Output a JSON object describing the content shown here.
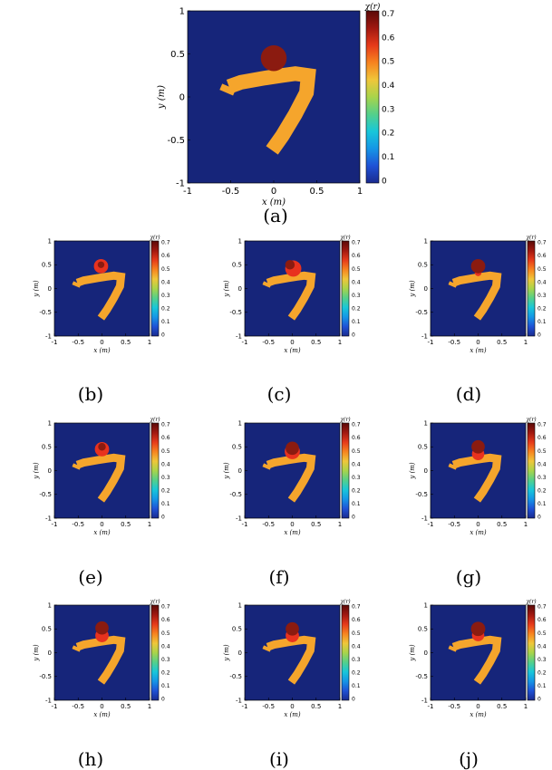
{
  "colors": {
    "background": "#16257a",
    "shape": "#f5a52c",
    "inclusion_outer": "#e8321e",
    "inclusion_inner": "#8b1b10",
    "colormap": [
      "#1a2a8f",
      "#1f52d6",
      "#1596e6",
      "#18c7d9",
      "#55d08a",
      "#a9d44a",
      "#f0c63a",
      "#f7831f",
      "#e63a1a",
      "#a01810",
      "#5a0a08"
    ]
  },
  "chart_data": [
    {
      "id": "a",
      "type": "heatmap",
      "caption": "(a)",
      "xlabel": "x (m)",
      "ylabel": "y (m)",
      "xlim": [
        -1,
        1
      ],
      "ylim": [
        -1,
        1
      ],
      "xticks": [
        "-1",
        "-0.5",
        "0",
        "0.5",
        "1"
      ],
      "yticks": [
        "1",
        "0.5",
        "0",
        "-0.5",
        "-1"
      ],
      "colorbar": {
        "label": "χ(r)",
        "ticks": [
          "0.7",
          "0.6",
          "0.5",
          "0.4",
          "0.3",
          "0.2",
          "0.1",
          "0"
        ],
        "range": [
          0,
          0.7
        ]
      },
      "shape_value": 0.42,
      "inclusion": {
        "center": [
          0,
          0.45
        ],
        "radius": 0.15,
        "value": 0.7
      },
      "inclusion_ring": null
    },
    {
      "id": "b",
      "type": "heatmap",
      "caption": "(b)",
      "xlabel": "x (m)",
      "ylabel": "y (m)",
      "xlim": [
        -1,
        1
      ],
      "ylim": [
        -1,
        1
      ],
      "xticks": [
        "-1",
        "-0.5",
        "0",
        "0.5",
        "1"
      ],
      "yticks": [
        "1",
        "0.5",
        "0",
        "-0.5",
        "-1"
      ],
      "colorbar": {
        "label": "χ(r)",
        "ticks": [
          "0.7",
          "0.6",
          "0.5",
          "0.4",
          "0.3",
          "0.2",
          "0.1",
          "0"
        ],
        "range": [
          0,
          0.7
        ]
      },
      "shape_value": 0.42,
      "inclusion": {
        "center": [
          -0.02,
          0.5
        ],
        "radius": 0.07,
        "value": 0.7
      },
      "inclusion_ring": {
        "center": [
          -0.02,
          0.47
        ],
        "radius": 0.15,
        "value": 0.63
      }
    },
    {
      "id": "c",
      "type": "heatmap",
      "caption": "(c)",
      "xlabel": "x (m)",
      "ylabel": "y (m)",
      "xlim": [
        -1,
        1
      ],
      "ylim": [
        -1,
        1
      ],
      "xticks": [
        "-1",
        "-0.5",
        "0",
        "0.5",
        "1"
      ],
      "yticks": [
        "1",
        "0.5",
        "0",
        "-0.5",
        "-1"
      ],
      "colorbar": {
        "label": "χ(r)",
        "ticks": [
          "0.7",
          "0.6",
          "0.5",
          "0.4",
          "0.3",
          "0.2",
          "0.1",
          "0"
        ],
        "range": [
          0,
          0.7
        ]
      },
      "shape_value": 0.42,
      "inclusion": {
        "center": [
          -0.05,
          0.5
        ],
        "radius": 0.1,
        "value": 0.7
      },
      "inclusion_ring": {
        "center": [
          0.02,
          0.42
        ],
        "radius": 0.17,
        "value": 0.63
      }
    },
    {
      "id": "d",
      "type": "heatmap",
      "caption": "(d)",
      "xlabel": "x (m)",
      "ylabel": "y (m)",
      "xlim": [
        -1,
        1
      ],
      "ylim": [
        -1,
        1
      ],
      "xticks": [
        "-1",
        "-0.5",
        "0",
        "0.5",
        "1"
      ],
      "yticks": [
        "1",
        "0.5",
        "0",
        "-0.5",
        "-1"
      ],
      "colorbar": {
        "label": "χ(r)",
        "ticks": [
          "0.7",
          "0.6",
          "0.5",
          "0.4",
          "0.3",
          "0.2",
          "0.1",
          "0"
        ],
        "range": [
          0,
          0.7
        ]
      },
      "shape_value": 0.42,
      "inclusion": {
        "center": [
          0,
          0.47
        ],
        "radius": 0.15,
        "value": 0.7
      },
      "inclusion_ring": {
        "center": [
          0,
          0.33
        ],
        "radius": 0.07,
        "value": 0.63
      }
    },
    {
      "id": "e",
      "type": "heatmap",
      "caption": "(e)",
      "xlabel": "x (m)",
      "ylabel": "y (m)",
      "xlim": [
        -1,
        1
      ],
      "ylim": [
        -1,
        1
      ],
      "xticks": [
        "-1",
        "-0.5",
        "0",
        "0.5",
        "1"
      ],
      "yticks": [
        "1",
        "0.5",
        "0",
        "-0.5",
        "-1"
      ],
      "colorbar": {
        "label": "χ(r)",
        "ticks": [
          "0.7",
          "0.6",
          "0.5",
          "0.4",
          "0.3",
          "0.2",
          "0.1",
          "0"
        ],
        "range": [
          0,
          0.7
        ]
      },
      "shape_value": 0.42,
      "inclusion": {
        "center": [
          0,
          0.5
        ],
        "radius": 0.08,
        "value": 0.7
      },
      "inclusion_ring": {
        "center": [
          0,
          0.45
        ],
        "radius": 0.15,
        "value": 0.63
      }
    },
    {
      "id": "f",
      "type": "heatmap",
      "caption": "(f)",
      "xlabel": "x (m)",
      "ylabel": "y (m)",
      "xlim": [
        -1,
        1
      ],
      "ylim": [
        -1,
        1
      ],
      "xticks": [
        "-1",
        "-0.5",
        "0",
        "0.5",
        "1"
      ],
      "yticks": [
        "1",
        "0.5",
        "0",
        "-0.5",
        "-1"
      ],
      "colorbar": {
        "label": "χ(r)",
        "ticks": [
          "0.7",
          "0.6",
          "0.5",
          "0.4",
          "0.3",
          "0.2",
          "0.1",
          "0"
        ],
        "range": [
          0,
          0.7
        ]
      },
      "shape_value": 0.42,
      "inclusion": {
        "center": [
          0,
          0.47
        ],
        "radius": 0.14,
        "value": 0.7
      },
      "inclusion_ring": {
        "center": [
          0,
          0.4
        ],
        "radius": 0.16,
        "value": 0.55
      }
    },
    {
      "id": "g",
      "type": "heatmap",
      "caption": "(g)",
      "xlabel": "x (m)",
      "ylabel": "y (m)",
      "xlim": [
        -1,
        1
      ],
      "ylim": [
        -1,
        1
      ],
      "xticks": [
        "-1",
        "-0.5",
        "0",
        "0.5",
        "1"
      ],
      "yticks": [
        "1",
        "0.5",
        "0",
        "-0.5",
        "-1"
      ],
      "colorbar": {
        "label": "χ(r)",
        "ticks": [
          "0.7",
          "0.6",
          "0.5",
          "0.4",
          "0.3",
          "0.2",
          "0.1",
          "0"
        ],
        "range": [
          0,
          0.7
        ]
      },
      "shape_value": 0.42,
      "inclusion": {
        "center": [
          0,
          0.5
        ],
        "radius": 0.14,
        "value": 0.7
      },
      "inclusion_ring": {
        "center": [
          0,
          0.35
        ],
        "radius": 0.13,
        "value": 0.63
      }
    },
    {
      "id": "h",
      "type": "heatmap",
      "caption": "(h)",
      "xlabel": "x (m)",
      "ylabel": "y (m)",
      "xlim": [
        -1,
        1
      ],
      "ylim": [
        -1,
        1
      ],
      "xticks": [
        "-1",
        "-0.5",
        "0",
        "0.5",
        "1"
      ],
      "yticks": [
        "1",
        "0.5",
        "0",
        "-0.5",
        "-1"
      ],
      "colorbar": {
        "label": "χ(r)",
        "ticks": [
          "0.7",
          "0.6",
          "0.5",
          "0.4",
          "0.3",
          "0.2",
          "0.1",
          "0"
        ],
        "range": [
          0,
          0.7
        ]
      },
      "shape_value": 0.42,
      "inclusion": {
        "center": [
          0,
          0.52
        ],
        "radius": 0.14,
        "value": 0.7
      },
      "inclusion_ring": {
        "center": [
          0,
          0.36
        ],
        "radius": 0.14,
        "value": 0.63
      }
    },
    {
      "id": "i",
      "type": "heatmap",
      "caption": "(i)",
      "xlabel": "x (m)",
      "ylabel": "y (m)",
      "xlim": [
        -1,
        1
      ],
      "ylim": [
        -1,
        1
      ],
      "xticks": [
        "-1",
        "-0.5",
        "0",
        "0.5",
        "1"
      ],
      "yticks": [
        "1",
        "0.5",
        "0",
        "-0.5",
        "-1"
      ],
      "colorbar": {
        "label": "χ(r)",
        "ticks": [
          "0.7",
          "0.6",
          "0.5",
          "0.4",
          "0.3",
          "0.2",
          "0.1",
          "0"
        ],
        "range": [
          0,
          0.7
        ]
      },
      "shape_value": 0.42,
      "inclusion": {
        "center": [
          0,
          0.5
        ],
        "radius": 0.14,
        "value": 0.7
      },
      "inclusion_ring": {
        "center": [
          0,
          0.36
        ],
        "radius": 0.14,
        "value": 0.63
      }
    },
    {
      "id": "j",
      "type": "heatmap",
      "caption": "(j)",
      "xlabel": "x (m)",
      "ylabel": "y (m)",
      "xlim": [
        -1,
        1
      ],
      "ylim": [
        -1,
        1
      ],
      "xticks": [
        "-1",
        "-0.5",
        "0",
        "0.5",
        "1"
      ],
      "yticks": [
        "1",
        "0.5",
        "0",
        "-0.5",
        "-1"
      ],
      "colorbar": {
        "label": "χ(r)",
        "ticks": [
          "0.7",
          "0.6",
          "0.5",
          "0.4",
          "0.3",
          "0.2",
          "0.1",
          "0"
        ],
        "range": [
          0,
          0.7
        ]
      },
      "shape_value": 0.42,
      "inclusion": {
        "center": [
          0,
          0.5
        ],
        "radius": 0.15,
        "value": 0.7
      },
      "inclusion_ring": {
        "center": [
          0,
          0.37
        ],
        "radius": 0.13,
        "value": 0.63
      }
    }
  ]
}
